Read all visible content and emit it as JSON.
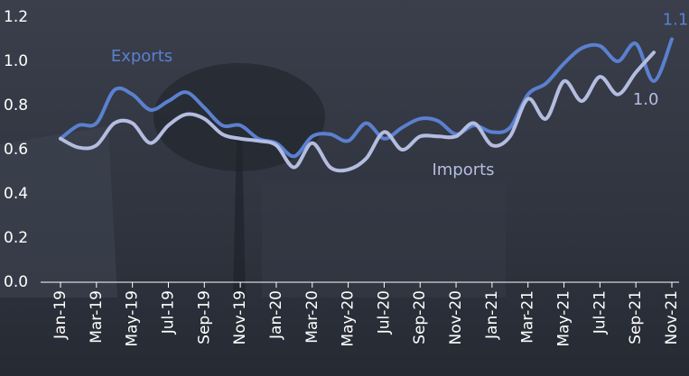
{
  "chart_data": {
    "type": "line",
    "categories": [
      "Jan-19",
      null,
      "Mar-19",
      null,
      "May-19",
      null,
      "Jul-19",
      null,
      "Sep-19",
      null,
      "Nov-19",
      null,
      "Jan-20",
      null,
      "Mar-20",
      null,
      "May-20",
      null,
      "Jul-20",
      null,
      "Sep-20",
      null,
      "Nov-20",
      null,
      "Jan-21",
      null,
      "Mar-21",
      null,
      "May-21",
      null,
      "Jul-21",
      null,
      "Sep-21",
      null,
      "Nov-21"
    ],
    "series": [
      {
        "name": "Exports",
        "color": "#5b80d0",
        "values": [
          0.65,
          0.71,
          0.72,
          0.87,
          0.85,
          0.78,
          0.82,
          0.86,
          0.79,
          0.71,
          0.71,
          0.65,
          0.63,
          0.57,
          0.66,
          0.67,
          0.64,
          0.72,
          0.65,
          0.7,
          0.74,
          0.73,
          0.67,
          0.71,
          0.68,
          0.7,
          0.85,
          0.9,
          0.99,
          1.06,
          1.07,
          1.0,
          1.08,
          0.91,
          1.1
        ],
        "value_labels": [
          null,
          null,
          null,
          null,
          null,
          null,
          null,
          null,
          null,
          null,
          null,
          null,
          null,
          null,
          null,
          null,
          null,
          null,
          null,
          null,
          null,
          null,
          null,
          null,
          null,
          null,
          null,
          null,
          null,
          null,
          null,
          null,
          null,
          null,
          "1.1"
        ]
      },
      {
        "name": "Imports",
        "color": "#b4bde0",
        "values": [
          0.65,
          0.61,
          0.62,
          0.72,
          0.72,
          0.63,
          0.71,
          0.76,
          0.74,
          0.67,
          0.65,
          0.64,
          0.62,
          0.52,
          0.63,
          0.52,
          0.51,
          0.56,
          0.68,
          0.6,
          0.66,
          0.66,
          0.66,
          0.72,
          0.62,
          0.66,
          0.83,
          0.74,
          0.91,
          0.82,
          0.93,
          0.85,
          0.95,
          1.04,
          null
        ],
        "value_labels": [
          null,
          null,
          null,
          null,
          null,
          null,
          null,
          null,
          null,
          null,
          null,
          null,
          null,
          null,
          null,
          null,
          null,
          null,
          null,
          null,
          null,
          null,
          null,
          null,
          null,
          null,
          null,
          null,
          null,
          null,
          null,
          null,
          null,
          "1.0",
          null
        ]
      }
    ],
    "ylim": [
      0,
      1.2
    ],
    "yticks": [
      {
        "value": 0,
        "label": "0.0"
      },
      0.2,
      0.4,
      0.6,
      0.8,
      {
        "value": 1,
        "label": "1.0"
      },
      1.2
    ]
  }
}
